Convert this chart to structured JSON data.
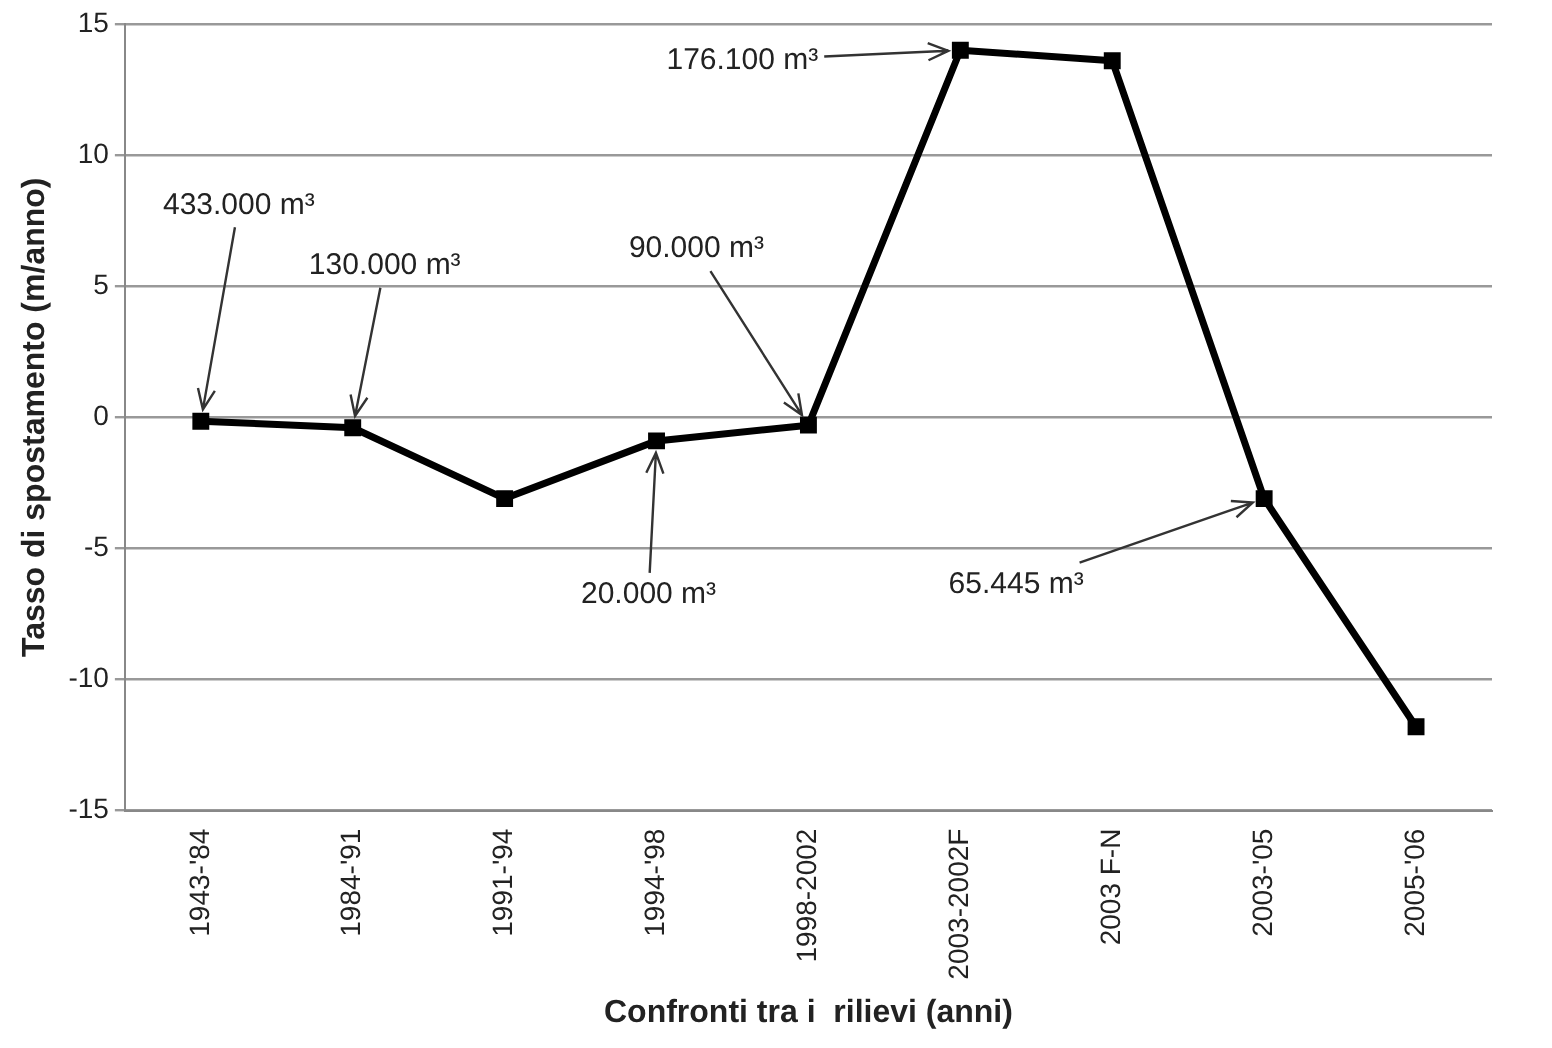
{
  "chart_data": {
    "type": "line",
    "xlabel": "Confronti tra i  rilievi (anni)",
    "ylabel": "Tasso di spostamento (m/anno)",
    "categories": [
      "1943-'84",
      "1984-'91",
      "1991-'94",
      "1994-'98",
      "1998-2002",
      "2003-2002F",
      "2003 F-N",
      "2003-'05",
      "2005-'06"
    ],
    "series": [
      {
        "color": "#000000",
        "values": [
          -0.15,
          -0.4,
          -3.1,
          -0.9,
          -0.3,
          14.0,
          13.6,
          -3.1,
          -11.8
        ]
      }
    ],
    "ylim": [
      -15,
      15
    ],
    "yticks": [
      -15,
      -10,
      -5,
      0,
      5,
      10,
      15
    ],
    "grid": "y",
    "legend": false,
    "marker": "square",
    "line_style": "solid",
    "annotations": [
      {
        "text": "433.000 m³",
        "x": "1943-'84",
        "y": -0.15
      },
      {
        "text": "130.000 m³",
        "x": "1984-'91",
        "y": -0.4
      },
      {
        "text": "20.000 m³",
        "x": "1994-'98",
        "y": -0.9
      },
      {
        "text": "90.000 m³",
        "x": "1998-2002",
        "y": -0.3
      },
      {
        "text": "176.100 m³",
        "x": "2003-2002F",
        "y": 14.0
      },
      {
        "text": "65.445 m³",
        "x": "2003-'05",
        "y": -3.1
      }
    ]
  }
}
